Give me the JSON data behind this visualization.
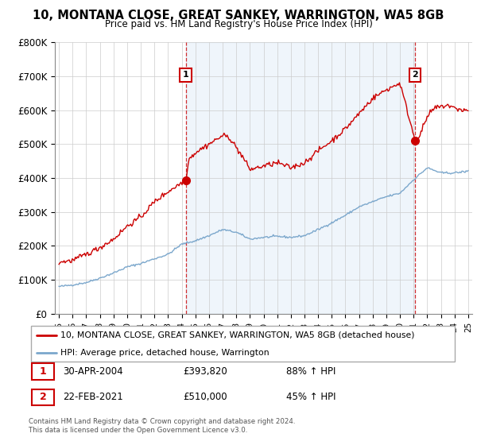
{
  "title": "10, MONTANA CLOSE, GREAT SANKEY, WARRINGTON, WA5 8GB",
  "subtitle": "Price paid vs. HM Land Registry's House Price Index (HPI)",
  "hpi_label": "HPI: Average price, detached house, Warrington",
  "property_label": "10, MONTANA CLOSE, GREAT SANKEY, WARRINGTON, WA5 8GB (detached house)",
  "hpi_color": "#7ba7cc",
  "property_color": "#cc0000",
  "bg_fill_color": "#ddeeff",
  "annotation1": {
    "label": "1",
    "date": "30-APR-2004",
    "price": "£393,820",
    "change": "88% ↑ HPI"
  },
  "annotation2": {
    "label": "2",
    "date": "22-FEB-2021",
    "price": "£510,000",
    "change": "45% ↑ HPI"
  },
  "footer": "Contains HM Land Registry data © Crown copyright and database right 2024.\nThis data is licensed under the Open Government Licence v3.0.",
  "ylim": [
    0,
    800000
  ],
  "yticks": [
    0,
    100000,
    200000,
    300000,
    400000,
    500000,
    600000,
    700000,
    800000
  ],
  "ytick_labels": [
    "£0",
    "£100K",
    "£200K",
    "£300K",
    "£400K",
    "£500K",
    "£600K",
    "£700K",
    "£800K"
  ],
  "start_year": 1995,
  "end_year": 2025,
  "year1": 2004.29,
  "year2": 2021.12,
  "price1": 393820,
  "price2": 510000,
  "hpi_knots_x": [
    1995,
    1996,
    1997,
    1998,
    1999,
    2000,
    2001,
    2002,
    2003,
    2004,
    2005,
    2006,
    2007,
    2008,
    2009,
    2010,
    2011,
    2012,
    2013,
    2014,
    2015,
    2016,
    2017,
    2018,
    2019,
    2020,
    2021,
    2022,
    2023,
    2024,
    2025
  ],
  "hpi_knots_y": [
    80000,
    85000,
    92000,
    105000,
    120000,
    138000,
    148000,
    162000,
    175000,
    205000,
    215000,
    230000,
    248000,
    240000,
    220000,
    225000,
    228000,
    225000,
    230000,
    248000,
    268000,
    290000,
    315000,
    330000,
    345000,
    355000,
    395000,
    430000,
    415000,
    415000,
    420000
  ],
  "prop_knots_x": [
    1995,
    1996,
    1997,
    1998,
    1999,
    2000,
    2001,
    2002,
    2003,
    2004.29,
    2004.5,
    2005,
    2006,
    2007,
    2007.5,
    2008.5,
    2009,
    2010,
    2011,
    2012,
    2013,
    2014,
    2015,
    2016,
    2017,
    2018,
    2019,
    2020,
    2021.12,
    2021.5,
    2022,
    2022.5,
    2023,
    2023.5,
    2024,
    2025
  ],
  "prop_knots_y": [
    152000,
    157000,
    175000,
    195000,
    220000,
    258000,
    285000,
    330000,
    360000,
    393820,
    455000,
    475000,
    500000,
    525000,
    520000,
    460000,
    425000,
    435000,
    445000,
    430000,
    445000,
    480000,
    510000,
    545000,
    590000,
    635000,
    660000,
    680000,
    510000,
    530000,
    580000,
    605000,
    610000,
    615000,
    605000,
    598000
  ]
}
